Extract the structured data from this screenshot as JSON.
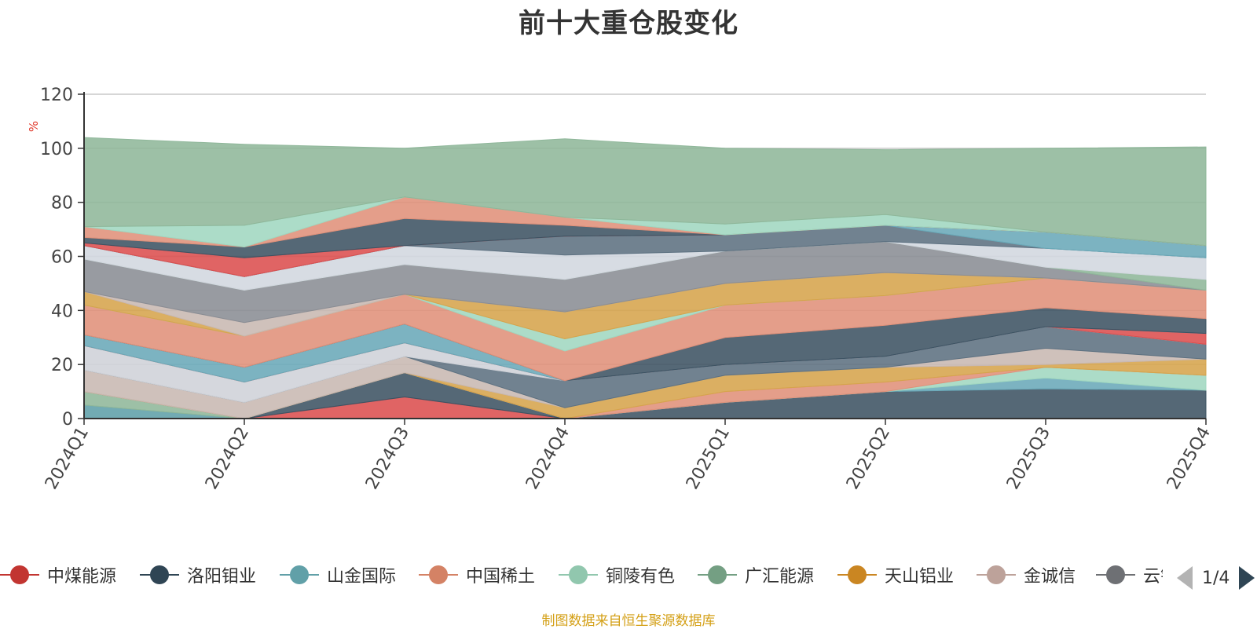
{
  "title": "前十大重仓股变化",
  "source_note": "制图数据来自恒生聚源数据库",
  "legend_pager": {
    "page": "1/4",
    "prev_icon": "triangle-left-icon",
    "next_icon": "triangle-right-icon"
  },
  "chart_data": {
    "type": "area",
    "stacked": true,
    "title": "前十大重仓股变化",
    "ylabel": "%",
    "ylim": [
      0,
      120
    ],
    "yticks": [
      0,
      20,
      40,
      60,
      80,
      100,
      120
    ],
    "grid": true,
    "legend_position": "bottom",
    "categories": [
      "2024Q1",
      "2024Q2",
      "2024Q3",
      "2024Q4",
      "2025Q1",
      "2025Q2",
      "2025Q3",
      "2025Q4"
    ],
    "series": [
      {
        "name": "",
        "color": "#5f9fa8",
        "values": [
          5,
          0,
          0,
          0,
          0,
          0,
          0,
          0
        ]
      },
      {
        "name": "",
        "color": "#8fb79a",
        "values": [
          5,
          0,
          0,
          0,
          0,
          0,
          0,
          0
        ]
      },
      {
        "name": "",
        "color": "#dc4f4f",
        "values": [
          0,
          0,
          8,
          0,
          0,
          0,
          0,
          0
        ]
      },
      {
        "name": "",
        "color": "#3d5363",
        "values": [
          0,
          0,
          9,
          0,
          6,
          10,
          11,
          10.5
        ]
      },
      {
        "name": "",
        "color": "#6aa9b8",
        "values": [
          0,
          0,
          0,
          0,
          0,
          0,
          4,
          0
        ]
      },
      {
        "name": "",
        "color": "#a0d7c0",
        "values": [
          0,
          0,
          0,
          0,
          0,
          0,
          4,
          5.5
        ]
      },
      {
        "name": "",
        "color": "#e0917a",
        "values": [
          0,
          0,
          0,
          0,
          4,
          3.5,
          0,
          0
        ]
      },
      {
        "name": "",
        "color": "#d6a44c",
        "values": [
          0,
          0,
          0,
          4,
          6,
          5.5,
          1,
          6
        ]
      },
      {
        "name": "",
        "color": "#c8b8b2",
        "values": [
          8,
          6,
          6,
          0,
          0,
          0,
          6,
          0
        ]
      },
      {
        "name": "",
        "color": "#5d7181",
        "values": [
          0,
          0,
          0,
          10,
          4,
          4,
          8,
          5.5
        ]
      },
      {
        "name": "",
        "color": "#cfd2d8",
        "values": [
          9,
          7.5,
          5,
          0,
          0,
          0,
          0,
          0
        ]
      },
      {
        "name": "",
        "color": "#dc4f4f",
        "values": [
          0,
          0,
          0,
          0,
          0,
          0,
          0,
          4
        ]
      },
      {
        "name": "",
        "color": "#6aa9b8",
        "values": [
          4,
          5.5,
          7,
          0,
          0,
          0,
          0,
          0
        ]
      },
      {
        "name": "",
        "color": "#3d5363",
        "values": [
          0,
          0,
          0,
          0,
          10,
          11.5,
          7,
          5.5
        ]
      },
      {
        "name": "",
        "color": "#e0917a",
        "values": [
          11,
          11.5,
          11,
          11,
          12,
          11,
          11,
          10.5
        ]
      },
      {
        "name": "",
        "color": "#a0d7c0",
        "values": [
          0,
          0,
          0,
          4.5,
          0,
          0,
          0,
          0
        ]
      },
      {
        "name": "",
        "color": "#d6a44c",
        "values": [
          5,
          0,
          0,
          10,
          8,
          8.5,
          0,
          0
        ]
      },
      {
        "name": "",
        "color": "#c8b8b2",
        "values": [
          0,
          5,
          0,
          0,
          0,
          0,
          0,
          0
        ]
      },
      {
        "name": "",
        "color": "#8a8d94",
        "values": [
          12,
          12,
          11,
          12,
          12,
          11.5,
          4,
          0
        ]
      },
      {
        "name": "",
        "color": "#8fb79a",
        "values": [
          0,
          0,
          0,
          0,
          0,
          0,
          0,
          4
        ]
      },
      {
        "name": "",
        "color": "#d2d7df",
        "values": [
          5,
          5,
          7,
          9,
          0,
          0,
          7,
          8
        ]
      },
      {
        "name": "",
        "color": "#5d7181",
        "values": [
          0,
          0,
          0,
          7,
          6,
          6,
          0,
          0
        ]
      },
      {
        "name": "",
        "color": "#6aa9b8",
        "values": [
          0,
          0,
          0,
          0,
          0,
          0,
          6,
          4.5
        ]
      },
      {
        "name": "",
        "color": "#dc4f4f",
        "values": [
          1,
          7,
          0,
          0,
          0,
          0,
          0,
          0
        ]
      },
      {
        "name": "",
        "color": "#3d5363",
        "values": [
          2,
          4,
          10,
          4,
          0,
          0,
          0,
          0
        ]
      },
      {
        "name": "",
        "color": "#e0917a",
        "values": [
          4,
          0,
          8,
          3,
          0,
          0,
          0,
          0
        ]
      },
      {
        "name": "",
        "color": "#a0d7c0",
        "values": [
          0,
          8,
          0,
          0,
          4,
          4,
          0,
          0
        ]
      },
      {
        "name": "",
        "color": "#8fb79a",
        "values": [
          33,
          30,
          18,
          29,
          28,
          24,
          31,
          36.5
        ]
      }
    ],
    "legend": [
      {
        "label": "中煤能源",
        "color": "#c23531"
      },
      {
        "label": "洛阳钼业",
        "color": "#2f4554"
      },
      {
        "label": "山金国际",
        "color": "#61a0a8"
      },
      {
        "label": "中国稀土",
        "color": "#d48265"
      },
      {
        "label": "铜陵有色",
        "color": "#91c7ae"
      },
      {
        "label": "广汇能源",
        "color": "#749f83"
      },
      {
        "label": "天山铝业",
        "color": "#ca8622"
      },
      {
        "label": "金诚信",
        "color": "#bda29a"
      },
      {
        "label": "云铝",
        "color": "#6e7074"
      }
    ]
  }
}
